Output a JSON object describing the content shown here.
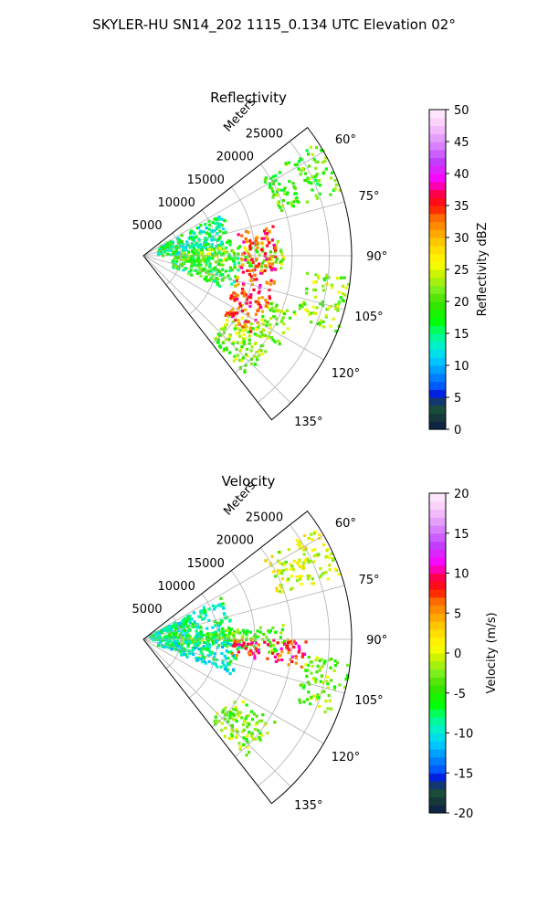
{
  "figure": {
    "suptitle": "SKYLER-HU  SN14_202  1115_0.134 UTC Elevation 02°"
  },
  "chart_data": [
    {
      "type": "heatmap",
      "projection": "polar-sector",
      "title": "Reflectivity",
      "radial_label": "Meters",
      "radial_ticks": [
        "5000",
        "10000",
        "15000",
        "20000",
        "25000"
      ],
      "radial_tick_values": [
        5000,
        10000,
        15000,
        20000,
        25000
      ],
      "rlim": [
        0,
        28000
      ],
      "theta_range_deg": [
        52,
        142
      ],
      "theta_ticks": [
        "60°",
        "75°",
        "90°",
        "105°",
        "120°",
        "135°"
      ],
      "theta_tick_values": [
        60,
        75,
        90,
        105,
        120,
        135
      ],
      "colorbar": {
        "label": "Reflectivity dBZ",
        "range": [
          0,
          50
        ],
        "ticks": [
          "0",
          "5",
          "10",
          "15",
          "20",
          "25",
          "30",
          "35",
          "40",
          "45",
          "50"
        ]
      },
      "grid": true,
      "echoes": [
        {
          "theta_deg": [
            57,
            72
          ],
          "r_m": [
            19000,
            28000
          ],
          "value": 20
        },
        {
          "theta_deg": [
            62,
            90
          ],
          "r_m": [
            2000,
            12000
          ],
          "value": 15
        },
        {
          "theta_deg": [
            84,
            96
          ],
          "r_m": [
            5000,
            19000
          ],
          "value": 22
        },
        {
          "theta_deg": [
            90,
            112
          ],
          "r_m": [
            4000,
            13000
          ],
          "value": 18
        },
        {
          "theta_deg": [
            96,
            112
          ],
          "r_m": [
            22000,
            28000
          ],
          "value": 22
        },
        {
          "theta_deg": [
            110,
            126
          ],
          "r_m": [
            18000,
            22000
          ],
          "value": 22
        },
        {
          "theta_deg": [
            122,
            140
          ],
          "r_m": [
            14000,
            21000
          ],
          "value": 22
        },
        {
          "theta_deg": [
            76,
            126
          ],
          "r_m": [
            13000,
            18000
          ],
          "value": 34
        }
      ]
    },
    {
      "type": "heatmap",
      "projection": "polar-sector",
      "title": "Velocity",
      "radial_label": "Meters",
      "radial_ticks": [
        "5000",
        "10000",
        "15000",
        "20000",
        "25000"
      ],
      "radial_tick_values": [
        5000,
        10000,
        15000,
        20000,
        25000
      ],
      "rlim": [
        0,
        28000
      ],
      "theta_range_deg": [
        52,
        142
      ],
      "theta_ticks": [
        "60°",
        "75°",
        "90°",
        "105°",
        "120°",
        "135°"
      ],
      "theta_tick_values": [
        60,
        75,
        90,
        105,
        120,
        135
      ],
      "colorbar": {
        "label": "Velocity (m/s)",
        "range": [
          -20,
          20
        ],
        "ticks": [
          "-20",
          "-15",
          "-10",
          "-5",
          "0",
          "5",
          "10",
          "15",
          "20"
        ]
      },
      "grid": true,
      "echoes": [
        {
          "theta_deg": [
            57,
            72
          ],
          "r_m": [
            19000,
            28000
          ],
          "value": 0
        },
        {
          "theta_deg": [
            62,
            92
          ],
          "r_m": [
            1000,
            12000
          ],
          "value": -8
        },
        {
          "theta_deg": [
            84,
            96
          ],
          "r_m": [
            5000,
            19000
          ],
          "value": -4
        },
        {
          "theta_deg": [
            92,
            112
          ],
          "r_m": [
            2000,
            13000
          ],
          "value": -9
        },
        {
          "theta_deg": [
            96,
            112
          ],
          "r_m": [
            22000,
            28000
          ],
          "value": -3
        },
        {
          "theta_deg": [
            122,
            140
          ],
          "r_m": [
            14000,
            21000
          ],
          "value": -3
        },
        {
          "theta_deg": [
            90,
            100
          ],
          "r_m": [
            12000,
            22000
          ],
          "value": 8
        }
      ]
    }
  ]
}
